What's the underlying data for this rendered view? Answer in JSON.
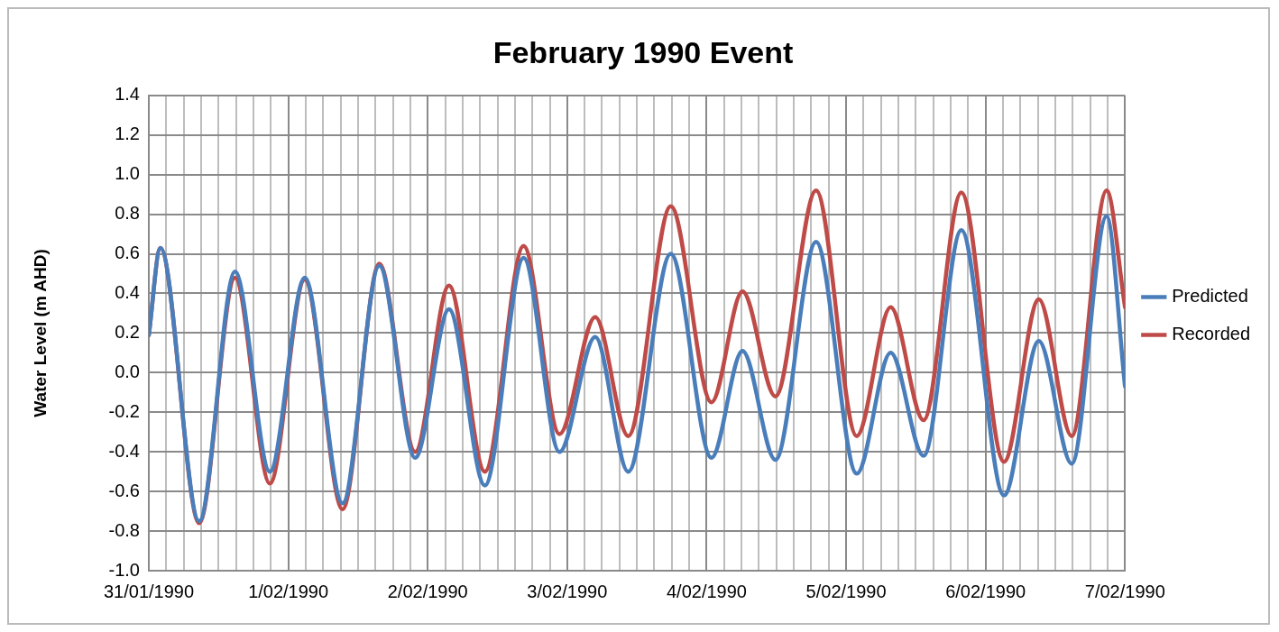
{
  "chart_data": {
    "type": "line",
    "title": "February 1990 Event",
    "ylabel": "Water Level (m AHD)",
    "x": [
      "1990-01-31T00:00",
      "1990-01-31T02:00",
      "1990-01-31T08:40",
      "1990-01-31T14:50",
      "1990-01-31T20:50",
      "1990-02-01T02:50",
      "1990-02-01T09:20",
      "1990-02-01T15:40",
      "1990-02-01T21:50",
      "1990-02-02T03:40",
      "1990-02-02T09:50",
      "1990-02-02T16:30",
      "1990-02-02T22:40",
      "1990-02-03T04:50",
      "1990-02-03T10:30",
      "1990-02-03T17:50",
      "1990-02-04T00:50",
      "1990-02-04T06:10",
      "1990-02-04T11:50",
      "1990-02-04T18:50",
      "1990-02-05T01:50",
      "1990-02-05T07:40",
      "1990-02-05T13:20",
      "1990-02-05T19:50",
      "1990-02-06T03:10",
      "1990-02-06T09:10",
      "1990-02-06T14:50",
      "1990-02-06T20:50",
      "1990-02-07T00:00"
    ],
    "series": [
      {
        "name": "Predicted",
        "color": "#4a7ebb",
        "values": [
          0.19,
          0.63,
          -0.75,
          0.51,
          -0.5,
          0.48,
          -0.66,
          0.54,
          -0.43,
          0.32,
          -0.57,
          0.58,
          -0.4,
          0.18,
          -0.5,
          0.6,
          -0.43,
          0.11,
          -0.44,
          0.66,
          -0.51,
          0.1,
          -0.42,
          0.72,
          -0.62,
          0.16,
          -0.46,
          0.79,
          -0.07
        ]
      },
      {
        "name": "Recorded",
        "color": "#be4b48",
        "values": [
          0.19,
          0.63,
          -0.76,
          0.48,
          -0.56,
          0.47,
          -0.69,
          0.55,
          -0.4,
          0.44,
          -0.5,
          0.64,
          -0.31,
          0.28,
          -0.32,
          0.84,
          -0.15,
          0.41,
          -0.12,
          0.92,
          -0.32,
          0.33,
          -0.24,
          0.91,
          -0.45,
          0.37,
          -0.32,
          0.92,
          0.33
        ]
      }
    ],
    "xlim": [
      "1990-01-31",
      "1990-02-07"
    ],
    "xticks": [
      {
        "value": "1990-01-31",
        "label": "31/01/1990"
      },
      {
        "value": "1990-01-31T03:00",
        "label": null
      },
      {
        "value": "1990-01-31T06:00",
        "label": null
      },
      {
        "value": "1990-01-31T09:00",
        "label": null
      },
      {
        "value": "1990-01-31T12:00",
        "label": null
      },
      {
        "value": "1990-01-31T15:00",
        "label": null
      },
      {
        "value": "1990-01-31T18:00",
        "label": null
      },
      {
        "value": "1990-01-31T21:00",
        "label": null
      },
      {
        "value": "1990-02-01",
        "label": "1/02/1990"
      },
      {
        "value": "1990-02-01T03:00",
        "label": null
      },
      {
        "value": "1990-02-01T06:00",
        "label": null
      },
      {
        "value": "1990-02-01T09:00",
        "label": null
      },
      {
        "value": "1990-02-01T12:00",
        "label": null
      },
      {
        "value": "1990-02-01T15:00",
        "label": null
      },
      {
        "value": "1990-02-01T18:00",
        "label": null
      },
      {
        "value": "1990-02-01T21:00",
        "label": null
      },
      {
        "value": "1990-02-02",
        "label": "2/02/1990"
      },
      {
        "value": "1990-02-02T03:00",
        "label": null
      },
      {
        "value": "1990-02-02T06:00",
        "label": null
      },
      {
        "value": "1990-02-02T09:00",
        "label": null
      },
      {
        "value": "1990-02-02T12:00",
        "label": null
      },
      {
        "value": "1990-02-02T15:00",
        "label": null
      },
      {
        "value": "1990-02-02T18:00",
        "label": null
      },
      {
        "value": "1990-02-02T21:00",
        "label": null
      },
      {
        "value": "1990-02-03",
        "label": "3/02/1990"
      },
      {
        "value": "1990-02-03T03:00",
        "label": null
      },
      {
        "value": "1990-02-03T06:00",
        "label": null
      },
      {
        "value": "1990-02-03T09:00",
        "label": null
      },
      {
        "value": "1990-02-03T12:00",
        "label": null
      },
      {
        "value": "1990-02-03T15:00",
        "label": null
      },
      {
        "value": "1990-02-03T18:00",
        "label": null
      },
      {
        "value": "1990-02-03T21:00",
        "label": null
      },
      {
        "value": "1990-02-04",
        "label": "4/02/1990"
      },
      {
        "value": "1990-02-04T03:00",
        "label": null
      },
      {
        "value": "1990-02-04T06:00",
        "label": null
      },
      {
        "value": "1990-02-04T09:00",
        "label": null
      },
      {
        "value": "1990-02-04T12:00",
        "label": null
      },
      {
        "value": "1990-02-04T15:00",
        "label": null
      },
      {
        "value": "1990-02-04T18:00",
        "label": null
      },
      {
        "value": "1990-02-04T21:00",
        "label": null
      },
      {
        "value": "1990-02-05",
        "label": "5/02/1990"
      },
      {
        "value": "1990-02-05T03:00",
        "label": null
      },
      {
        "value": "1990-02-05T06:00",
        "label": null
      },
      {
        "value": "1990-02-05T09:00",
        "label": null
      },
      {
        "value": "1990-02-05T12:00",
        "label": null
      },
      {
        "value": "1990-02-05T15:00",
        "label": null
      },
      {
        "value": "1990-02-05T18:00",
        "label": null
      },
      {
        "value": "1990-02-05T21:00",
        "label": null
      },
      {
        "value": "1990-02-06",
        "label": "6/02/1990"
      },
      {
        "value": "1990-02-06T03:00",
        "label": null
      },
      {
        "value": "1990-02-06T06:00",
        "label": null
      },
      {
        "value": "1990-02-06T09:00",
        "label": null
      },
      {
        "value": "1990-02-06T12:00",
        "label": null
      },
      {
        "value": "1990-02-06T15:00",
        "label": null
      },
      {
        "value": "1990-02-06T18:00",
        "label": null
      },
      {
        "value": "1990-02-06T21:00",
        "label": null
      },
      {
        "value": "1990-02-07",
        "label": "7/02/1990"
      }
    ],
    "ylim": [
      -1.0,
      1.4
    ],
    "yticks": [
      {
        "value": -1,
        "label": "-1.0"
      },
      {
        "value": -0.8,
        "label": "-0.8"
      },
      {
        "value": -0.6,
        "label": "-0.6"
      },
      {
        "value": -0.4,
        "label": "-0.4"
      },
      {
        "value": -0.2,
        "label": "-0.2"
      },
      {
        "value": 0,
        "label": "0.0"
      },
      {
        "value": 0.2,
        "label": "0.2"
      },
      {
        "value": 0.4,
        "label": "0.4"
      },
      {
        "value": 0.6,
        "label": "0.6"
      },
      {
        "value": 0.8,
        "label": "0.8"
      },
      {
        "value": 1,
        "label": "1.0"
      },
      {
        "value": 1.2,
        "label": "1.2"
      },
      {
        "value": 1.4,
        "label": "1.4"
      }
    ],
    "grid": true,
    "legend": "right",
    "marker": "none",
    "line_style": "solid"
  }
}
